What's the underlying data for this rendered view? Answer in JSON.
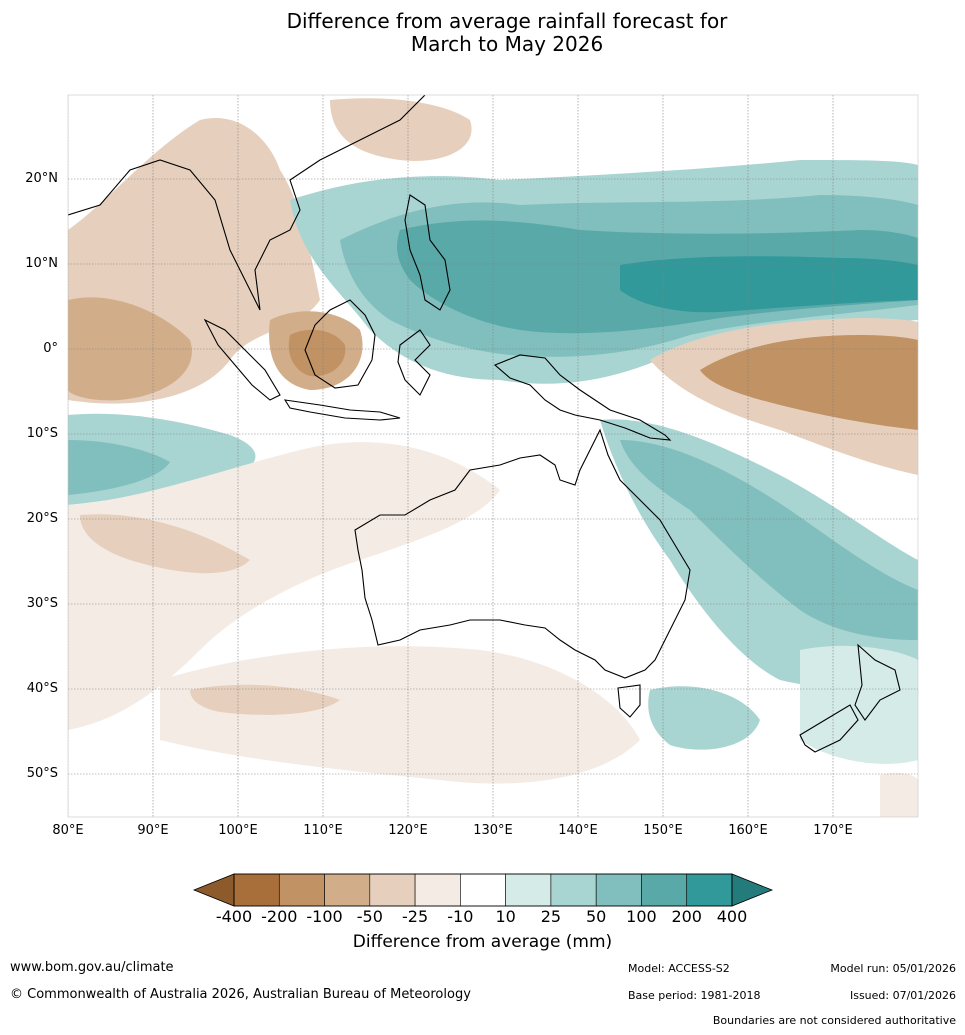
{
  "title": {
    "line1": "Difference from average rainfall forecast for",
    "line2": "March to May 2026"
  },
  "map": {
    "region": "Australia, Indonesia, South-East Asia and South-West Pacific",
    "lat_labels": [
      "20°N",
      "10°N",
      "0°",
      "10°S",
      "20°S",
      "30°S",
      "40°S",
      "50°S"
    ],
    "lon_labels": [
      "80°E",
      "90°E",
      "100°E",
      "110°E",
      "120°E",
      "130°E",
      "140°E",
      "150°E",
      "160°E",
      "170°E"
    ]
  },
  "legend": {
    "title": "Difference from average (mm)",
    "ticks": [
      "-400",
      "-200",
      "-100",
      "-50",
      "-25",
      "-10",
      "10",
      "25",
      "50",
      "100",
      "200",
      "400"
    ],
    "colors": [
      "#a96f3a",
      "#c19263",
      "#d2ad8a",
      "#e6d0bd",
      "#f4ebe4",
      "#ffffff",
      "#d4ebe8",
      "#a8d5d2",
      "#80bfbd",
      "#5aa9a9",
      "#31999a"
    ],
    "under_color": "#8d5a2b",
    "over_color": "#237b7b"
  },
  "footer": {
    "website": "www.bom.gov.au/climate",
    "copyright": "© Commonwealth of Australia 2026, Australian Bureau of Meteorology",
    "model": "Model: ACCESS-S2",
    "model_run": "Model run: 05/01/2026",
    "base_period": "Base period: 1981-2018",
    "issued": "Issued: 07/01/2026",
    "disclaimer": "Boundaries are not considered authoritative"
  }
}
